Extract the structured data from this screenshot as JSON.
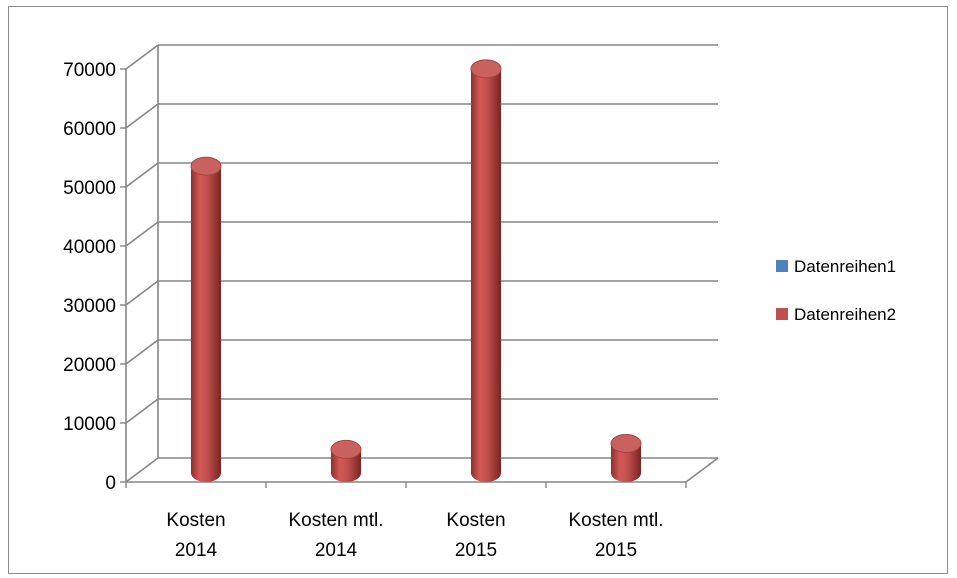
{
  "chart_data": {
    "type": "bar",
    "style": "3d-cylinder",
    "categories": [
      [
        "Kosten",
        "2014"
      ],
      [
        "Kosten mtl.",
        "2014"
      ],
      [
        "Kosten",
        "2015"
      ],
      [
        "Kosten mtl.",
        "2015"
      ]
    ],
    "series": [
      {
        "name": "Datenreihen1",
        "color": "#4f81bd",
        "values": [
          0,
          0,
          0,
          0
        ]
      },
      {
        "name": "Datenreihen2",
        "color": "#c0504d",
        "values": [
          52000,
          4000,
          68500,
          5000
        ]
      }
    ],
    "ylim": [
      0,
      70000
    ],
    "yticks": [
      "0",
      "10000",
      "20000",
      "30000",
      "40000",
      "50000",
      "60000",
      "70000"
    ],
    "grid": true,
    "legend_position": "right"
  }
}
